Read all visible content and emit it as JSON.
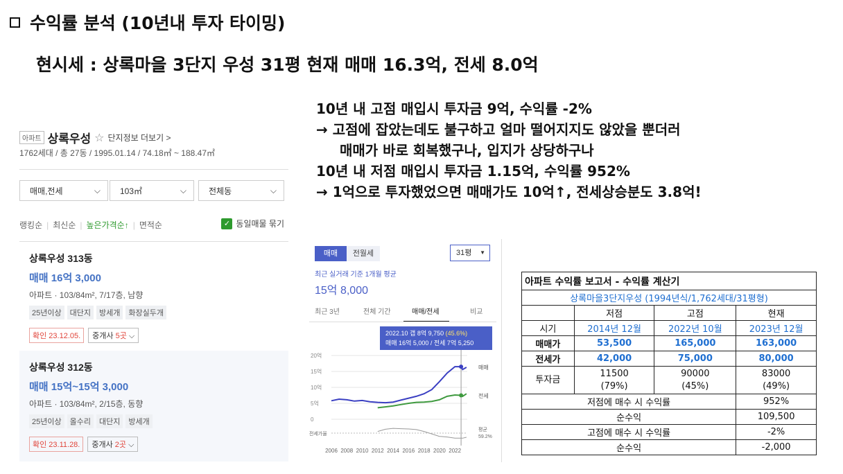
{
  "slide": {
    "title": "수익률 분석 (10년내 투자 타이밍)",
    "subtitle": "현시세 : 상록마을 3단지 우성 31평 현재 매매 16.3억, 전세 8.0억"
  },
  "analysis": [
    "10년 내 고점 매입시 투자금 9억, 수익률 -2%",
    "→ 고점에 잡았는데도 불구하고 얼마 떨어지지도 않았을 뿐더러",
    "매매가 바로 회복했구나, 입지가 상당하구나",
    "10년 내 저점 매입시 투자금 1.15억, 수익률 952%",
    "→ 1억으로 투자했었으면 매매가도 10억↑, 전세상승분도 3.8억!"
  ],
  "listing": {
    "badge": "아파트",
    "name": "상록우성",
    "info_link": "단지정보 더보기 >",
    "meta": "1762세대 / 총 27동 / 1995.01.14 / 74.18㎡ ~ 188.47㎡",
    "filters": [
      "매매,전세",
      "103㎡",
      "전체동"
    ],
    "sorts": [
      "랭킹순",
      "최신순",
      "높은가격순↑",
      "면적순"
    ],
    "dupe_label": "동일매물 묶기",
    "items": [
      {
        "title": "상록우성 313동",
        "price": "매매 16억 3,000",
        "desc": "아파트 · 103/84m², 7/17층, 남향",
        "tags": [
          "25년이상",
          "대단지",
          "방세개",
          "화장실두개"
        ],
        "confirm": "확인 23.12.05.",
        "agent_prefix": "중개사 ",
        "agent_count": "5곳"
      },
      {
        "title": "상록우성 312동",
        "price": "매매 15억~15억 3,000",
        "desc": "아파트 · 103/84m², 2/15층, 동향",
        "tags": [
          "25년이상",
          "올수리",
          "대단지",
          "방세개"
        ],
        "confirm": "확인 23.11.28.",
        "agent_prefix": "중개사 ",
        "agent_count": "2곳"
      }
    ]
  },
  "chart_panel": {
    "toggle_on": "매매",
    "toggle_off": "전월세",
    "pyeong": "31평",
    "avg_note": "최근 실거래 기준 1개월 평균",
    "avg_price": "15억 8,000",
    "tabs": [
      "최근 3년",
      "전체 기간",
      "매매/전세",
      "비교"
    ],
    "tooltip_line1": "2022.10  갭 8억 9,750 ",
    "tooltip_line1_hl": "(45.6%)",
    "tooltip_line2": "매매 16억 5,000 / 전세 7억 5,250"
  },
  "chart_data": {
    "type": "line",
    "x_ticks": [
      "2006",
      "2008",
      "2010",
      "2012",
      "2014",
      "2016",
      "2018",
      "2020",
      "2022"
    ],
    "y_ticks": [
      "20억",
      "15억",
      "10억",
      "5억",
      "0"
    ],
    "ylim": [
      0,
      20
    ],
    "gap_label": "전세가율",
    "gap_avg_label": "평균",
    "gap_avg_value": "59.2%",
    "highlight_year": 2022.8,
    "series": [
      {
        "name": "매매",
        "color": "#3a3fc2",
        "x": [
          2006,
          2007,
          2008,
          2009,
          2010,
          2011,
          2012,
          2013,
          2014,
          2015,
          2016,
          2017,
          2018,
          2019,
          2020,
          2021,
          2022,
          2022.8,
          2023,
          2023.5
        ],
        "values": [
          5.8,
          6.3,
          6.1,
          5.7,
          5.9,
          5.5,
          5.3,
          5.2,
          5.4,
          6.0,
          6.6,
          7.2,
          8.0,
          9.3,
          11.8,
          14.5,
          16.5,
          16.5,
          15.6,
          16.3
        ]
      },
      {
        "name": "전세",
        "color": "#3f9a3f",
        "x": [
          2012,
          2013,
          2014,
          2015,
          2016,
          2017,
          2018,
          2019,
          2020,
          2021,
          2022,
          2022.8,
          2023,
          2023.5
        ],
        "values": [
          3.6,
          3.9,
          4.2,
          4.6,
          5.0,
          5.3,
          5.4,
          5.6,
          6.1,
          7.2,
          7.6,
          7.5,
          7.2,
          8.0
        ]
      },
      {
        "name": "전세가율",
        "color": "#999999",
        "x": [
          2012,
          2013,
          2014,
          2015,
          2016,
          2017,
          2018,
          2019,
          2020,
          2021,
          2022,
          2023,
          2023.5
        ],
        "values": [
          68,
          75,
          78,
          77,
          76,
          74,
          68,
          60,
          52,
          50,
          46,
          46,
          49
        ]
      }
    ]
  },
  "report": {
    "title": "아파트 수익률 보고서 - 수익률 계산기",
    "complex": "상록마을3단지우성 (1994년식/1,762세대/31평형)",
    "headers": [
      "",
      "저점",
      "고점",
      "현재"
    ],
    "rows": [
      {
        "label": "시기",
        "values": [
          "2014년 12월",
          "2022년 10월",
          "2023년 12월"
        ]
      },
      {
        "label": "매매가",
        "values": [
          "53,500",
          "165,000",
          "163,000"
        ]
      },
      {
        "label": "전세가",
        "values": [
          "42,000",
          "75,000",
          "80,000"
        ]
      }
    ],
    "investment": {
      "label": "투자금",
      "values": [
        "11500",
        "90000",
        "83000"
      ],
      "pcts": [
        "(79%)",
        "(45%)",
        "(49%)"
      ]
    },
    "summary": [
      {
        "label": "저점에 매수 시 수익률",
        "value": "952%"
      },
      {
        "label": "순수익",
        "value": "109,500"
      },
      {
        "label": "고점에 매수 시 수익률",
        "value": "-2%"
      },
      {
        "label": "순수익",
        "value": "-2,000"
      }
    ]
  }
}
